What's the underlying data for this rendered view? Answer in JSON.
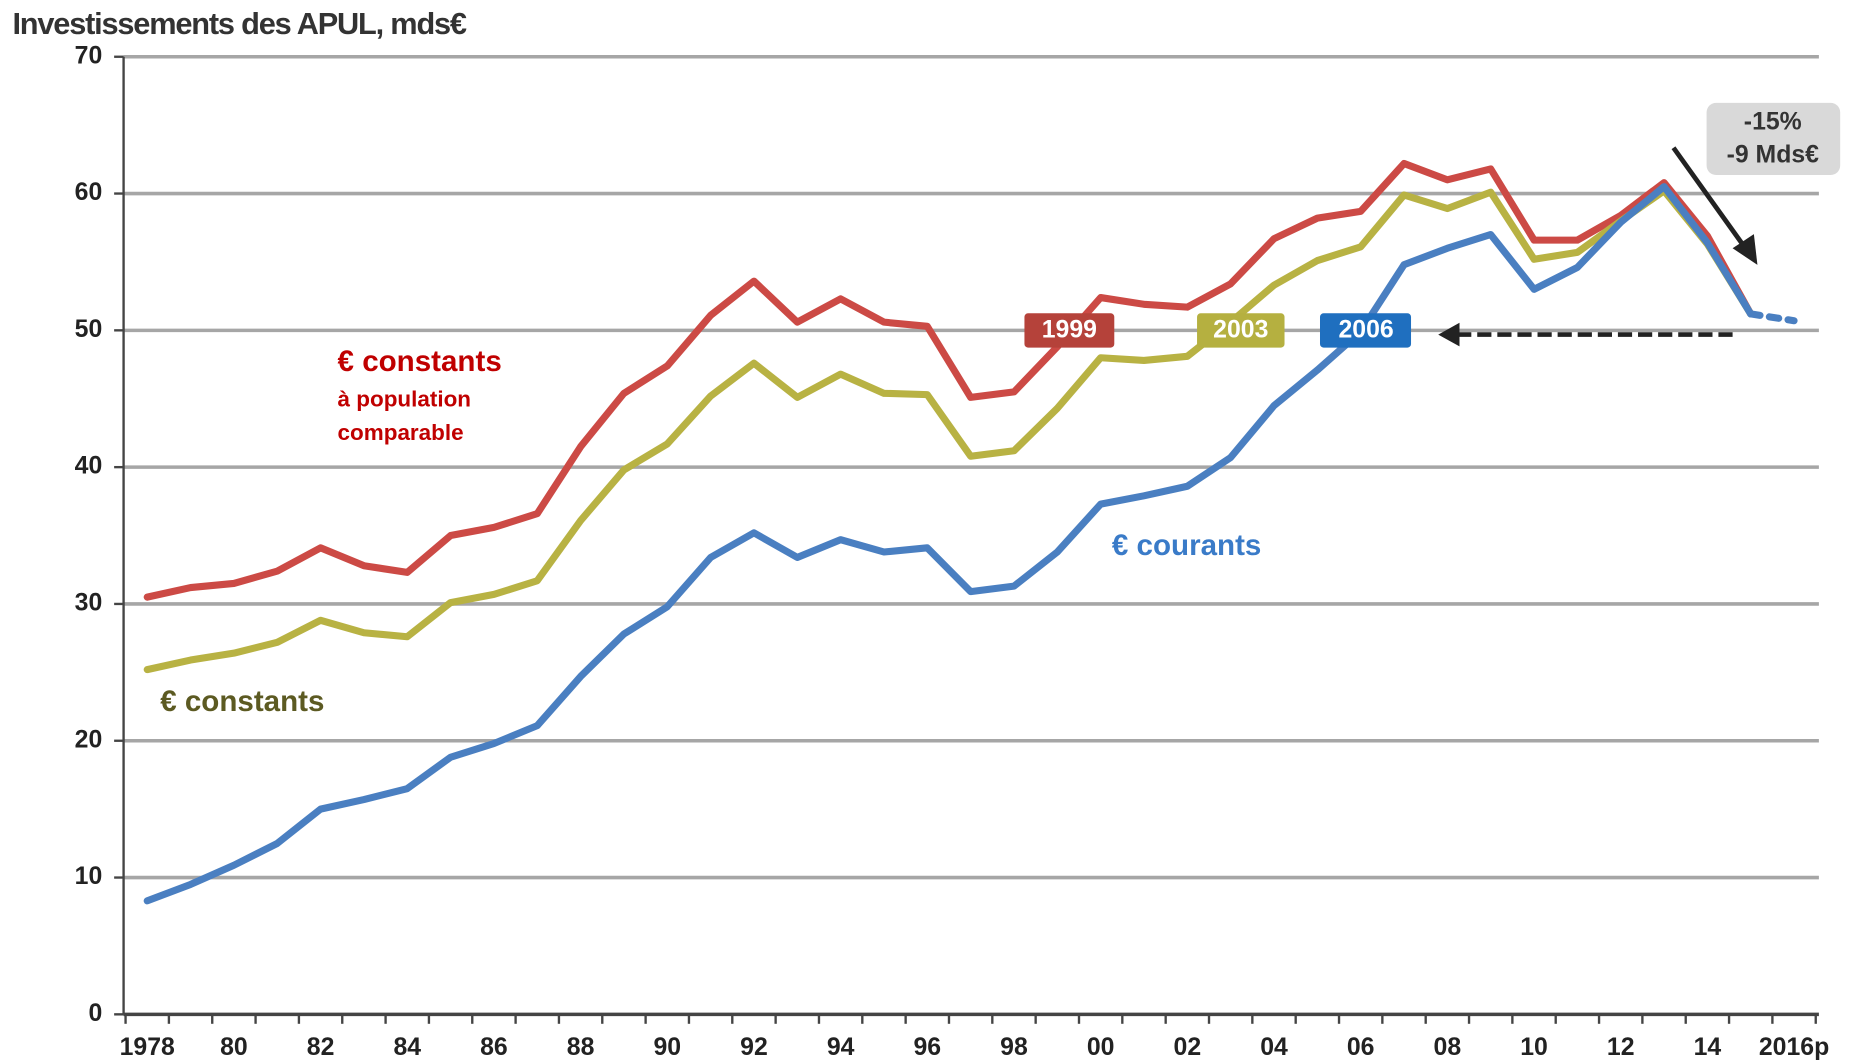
{
  "chart_data": {
    "type": "line",
    "title": "Investissements des  APUL, mds€",
    "categories": [
      "1978",
      null,
      "80",
      null,
      "82",
      null,
      "84",
      null,
      "86",
      null,
      "88",
      null,
      "90",
      null,
      "92",
      null,
      "94",
      null,
      "96",
      null,
      "98",
      null,
      "00",
      null,
      "02",
      null,
      "04",
      null,
      "06",
      null,
      "08",
      null,
      "10",
      null,
      "12",
      null,
      "14",
      null,
      "2016p"
    ],
    "series": [
      {
        "name": "€ constants",
        "note": [
          "à population",
          "comparable"
        ],
        "color": "#cc4a45",
        "values": [
          30.5,
          31.2,
          31.5,
          32.4,
          34.1,
          32.8,
          32.3,
          35.0,
          35.6,
          36.6,
          41.5,
          45.4,
          47.4,
          51.1,
          53.6,
          50.6,
          52.3,
          50.6,
          50.3,
          45.1,
          45.5,
          48.8,
          52.4,
          51.9,
          51.7,
          53.4,
          56.7,
          58.2,
          58.7,
          62.2,
          61.0,
          61.8,
          56.6,
          56.6,
          58.4,
          60.8,
          56.9,
          51.2,
          null
        ]
      },
      {
        "name": "€ constants",
        "color": "#b8b243",
        "values": [
          25.2,
          25.9,
          26.4,
          27.2,
          28.8,
          27.9,
          27.6,
          30.1,
          30.7,
          31.7,
          36.1,
          39.8,
          41.7,
          45.2,
          47.6,
          45.1,
          46.8,
          45.4,
          45.3,
          40.8,
          41.2,
          44.3,
          48.0,
          47.8,
          48.1,
          50.6,
          53.3,
          55.1,
          56.1,
          59.9,
          58.9,
          60.1,
          55.2,
          55.7,
          58.0,
          60.2,
          56.3,
          51.2,
          null
        ]
      },
      {
        "name": "€ courants",
        "color": "#4a7fc1",
        "values": [
          8.3,
          9.5,
          10.9,
          12.5,
          15.0,
          15.7,
          16.5,
          18.8,
          19.8,
          21.1,
          24.7,
          27.8,
          29.8,
          33.4,
          35.2,
          33.4,
          34.7,
          33.8,
          34.1,
          30.9,
          31.3,
          33.8,
          37.3,
          37.9,
          38.6,
          40.7,
          44.5,
          47.1,
          49.9,
          54.8,
          56.0,
          57.0,
          53.0,
          54.6,
          57.9,
          60.5,
          56.4,
          51.2,
          null
        ]
      },
      {
        "color": "#4a7fc1",
        "dashed": true,
        "values": [
          null,
          null,
          null,
          null,
          null,
          null,
          null,
          null,
          null,
          null,
          null,
          null,
          null,
          null,
          null,
          null,
          null,
          null,
          null,
          null,
          null,
          null,
          null,
          null,
          null,
          null,
          null,
          null,
          null,
          null,
          null,
          null,
          null,
          null,
          null,
          null,
          null,
          51.2,
          50.7
        ]
      }
    ],
    "annotations": {
      "years": [
        "1999",
        "2003",
        "2006"
      ],
      "callout": [
        "-15%",
        "-9 Mds€"
      ]
    },
    "ylim": [
      0,
      70
    ],
    "yticks": [
      0,
      10,
      20,
      30,
      40,
      50,
      60,
      70
    ],
    "grid": true
  }
}
